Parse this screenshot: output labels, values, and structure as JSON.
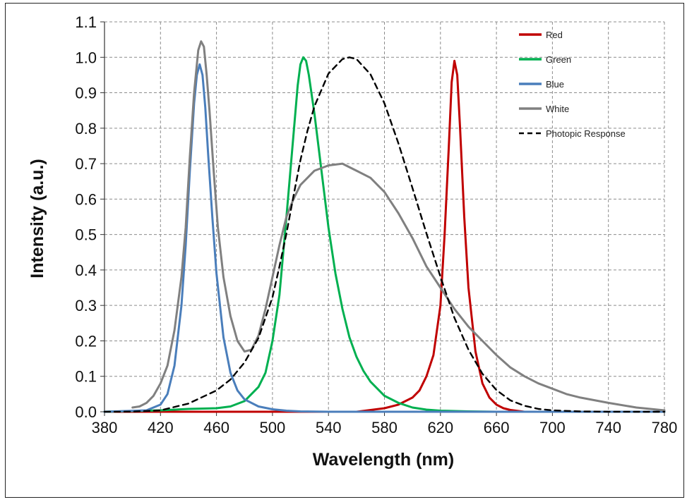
{
  "chart_data": {
    "type": "line",
    "xlabel": "Wavelength (nm)",
    "ylabel": "Intensity (a.u.)",
    "xlim": [
      380,
      780
    ],
    "ylim": [
      0.0,
      1.1
    ],
    "xticks": [
      "380",
      "420",
      "460",
      "500",
      "540",
      "580",
      "620",
      "660",
      "700",
      "740",
      "780"
    ],
    "yticks": [
      "0.0",
      "0.1",
      "0.2",
      "0.3",
      "0.4",
      "0.5",
      "0.6",
      "0.7",
      "0.8",
      "0.9",
      "1.0",
      "1.1"
    ],
    "grid": true,
    "legend_position": "top-right",
    "series": [
      {
        "name": "Red",
        "color": "#c00000",
        "dash": "solid",
        "x": [
          380,
          560,
          580,
          590,
          600,
          605,
          610,
          615,
          620,
          623,
          626,
          628,
          630,
          632,
          634,
          637,
          640,
          645,
          650,
          655,
          660,
          665,
          670,
          680,
          700,
          780
        ],
        "y": [
          0,
          0,
          0.01,
          0.02,
          0.04,
          0.06,
          0.1,
          0.16,
          0.3,
          0.5,
          0.75,
          0.93,
          0.99,
          0.95,
          0.8,
          0.55,
          0.35,
          0.17,
          0.08,
          0.04,
          0.02,
          0.01,
          0.005,
          0,
          0,
          0
        ]
      },
      {
        "name": "Green",
        "color": "#00b050",
        "dash": "solid",
        "x": [
          380,
          420,
          440,
          460,
          470,
          480,
          490,
          495,
          500,
          505,
          510,
          515,
          518,
          520,
          522,
          524,
          526,
          530,
          535,
          540,
          545,
          550,
          555,
          560,
          565,
          570,
          580,
          590,
          600,
          610,
          620,
          640,
          660,
          700,
          780
        ],
        "y": [
          0,
          0.004,
          0.008,
          0.01,
          0.015,
          0.03,
          0.07,
          0.11,
          0.2,
          0.33,
          0.55,
          0.78,
          0.92,
          0.98,
          1.0,
          0.99,
          0.95,
          0.84,
          0.68,
          0.52,
          0.39,
          0.29,
          0.21,
          0.155,
          0.115,
          0.085,
          0.045,
          0.025,
          0.012,
          0.006,
          0.003,
          0.001,
          0,
          0,
          0
        ]
      },
      {
        "name": "Blue",
        "color": "#4a7ebb",
        "dash": "solid",
        "x": [
          380,
          410,
          420,
          425,
          430,
          435,
          438,
          441,
          444,
          446,
          448,
          450,
          452,
          454,
          457,
          460,
          465,
          470,
          475,
          480,
          490,
          500,
          510,
          520,
          540,
          780
        ],
        "y": [
          0,
          0.004,
          0.02,
          0.05,
          0.13,
          0.3,
          0.47,
          0.68,
          0.87,
          0.95,
          0.98,
          0.95,
          0.86,
          0.73,
          0.55,
          0.39,
          0.21,
          0.11,
          0.06,
          0.035,
          0.015,
          0.007,
          0.003,
          0.001,
          0,
          0
        ]
      },
      {
        "name": "White",
        "color": "#808080",
        "dash": "solid",
        "x": [
          400,
          405,
          410,
          415,
          420,
          425,
          430,
          435,
          438,
          441,
          444,
          447,
          449,
          451,
          453,
          455,
          458,
          461,
          465,
          470,
          475,
          480,
          485,
          490,
          495,
          500,
          505,
          510,
          515,
          520,
          525,
          530,
          540,
          550,
          555,
          560,
          570,
          580,
          590,
          600,
          610,
          620,
          630,
          640,
          650,
          660,
          670,
          680,
          690,
          700,
          710,
          720,
          740,
          760,
          780
        ],
        "y": [
          0.012,
          0.015,
          0.025,
          0.045,
          0.08,
          0.13,
          0.23,
          0.38,
          0.52,
          0.72,
          0.9,
          1.02,
          1.045,
          1.03,
          0.95,
          0.85,
          0.68,
          0.52,
          0.38,
          0.27,
          0.2,
          0.17,
          0.175,
          0.215,
          0.29,
          0.38,
          0.47,
          0.55,
          0.6,
          0.64,
          0.66,
          0.68,
          0.695,
          0.7,
          0.69,
          0.68,
          0.66,
          0.62,
          0.56,
          0.49,
          0.41,
          0.35,
          0.29,
          0.24,
          0.2,
          0.16,
          0.125,
          0.1,
          0.08,
          0.065,
          0.05,
          0.04,
          0.025,
          0.012,
          0.004
        ]
      },
      {
        "name": "Photopic Response",
        "color": "#000000",
        "dash": "dashed",
        "x": [
          380,
          400,
          420,
          440,
          460,
          470,
          480,
          490,
          500,
          505,
          510,
          515,
          520,
          525,
          530,
          540,
          550,
          555,
          560,
          570,
          580,
          590,
          600,
          610,
          620,
          630,
          640,
          650,
          660,
          670,
          680,
          690,
          700,
          720,
          740,
          760,
          780
        ],
        "y": [
          0,
          0.0004,
          0.004,
          0.023,
          0.06,
          0.091,
          0.139,
          0.208,
          0.323,
          0.41,
          0.503,
          0.608,
          0.71,
          0.793,
          0.862,
          0.954,
          0.995,
          1.0,
          0.995,
          0.952,
          0.87,
          0.757,
          0.631,
          0.503,
          0.381,
          0.265,
          0.175,
          0.107,
          0.061,
          0.032,
          0.017,
          0.008,
          0.004,
          0.001,
          0.0002,
          6e-05,
          1e-05
        ]
      }
    ]
  }
}
